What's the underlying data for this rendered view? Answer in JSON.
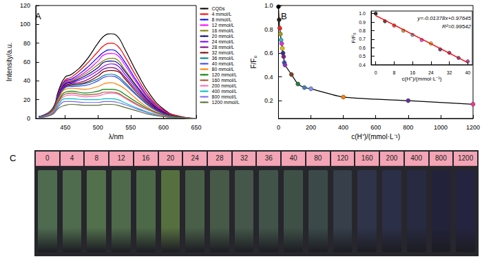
{
  "chart_data": [
    {
      "type": "line",
      "title": "A",
      "xlabel": "λ/nm",
      "ylabel": "Intensity/a.u.",
      "x": [
        410,
        430,
        440,
        450,
        460,
        480,
        500,
        510,
        520,
        530,
        540,
        560,
        580,
        600,
        620,
        650
      ],
      "xlim": [
        405,
        650
      ],
      "xticks": [
        450,
        500,
        550,
        600,
        650
      ],
      "ylim": [
        0,
        120
      ],
      "yticks": [
        0,
        20,
        40,
        60,
        80,
        100,
        120
      ],
      "legend": "right",
      "series": [
        {
          "name": "CQDs",
          "color": "#000000",
          "values": [
            2,
            10,
            30,
            44,
            47,
            60,
            80,
            88,
            90,
            87,
            75,
            48,
            25,
            10,
            3,
            0
          ]
        },
        {
          "name": "4 mmol/L",
          "color": "#ff0000",
          "values": [
            2,
            9,
            28,
            41,
            44,
            56,
            71,
            78,
            80,
            77,
            67,
            43,
            22,
            9,
            3,
            0
          ]
        },
        {
          "name": "8 mmol/L",
          "color": "#0000ff",
          "values": [
            2,
            9,
            27,
            40,
            42,
            52,
            65,
            71,
            73,
            70,
            61,
            39,
            20,
            8,
            2,
            0
          ]
        },
        {
          "name": "12 mmol/L",
          "color": "#ff00ff",
          "values": [
            2,
            9,
            26,
            39,
            41,
            49,
            61,
            68,
            69,
            67,
            58,
            37,
            19,
            8,
            2,
            0
          ]
        },
        {
          "name": "16 mmol/L",
          "color": "#808000",
          "values": [
            2,
            9,
            26,
            38,
            40,
            47,
            57,
            62,
            64,
            62,
            53,
            34,
            18,
            7,
            2,
            0
          ]
        },
        {
          "name": "20 mmol/L",
          "color": "#000080",
          "values": [
            2,
            8,
            25,
            37,
            39,
            45,
            54,
            60,
            61,
            59,
            51,
            33,
            17,
            7,
            2,
            0
          ]
        },
        {
          "name": "24 mmol/L",
          "color": "#8000ff",
          "values": [
            2,
            8,
            25,
            36,
            38,
            43,
            51,
            56,
            58,
            56,
            48,
            31,
            16,
            6,
            2,
            0
          ]
        },
        {
          "name": "28 mmol/L",
          "color": "#800080",
          "values": [
            2,
            8,
            24,
            35,
            37,
            40,
            48,
            53,
            54,
            52,
            45,
            29,
            15,
            6,
            2,
            0
          ]
        },
        {
          "name": "32 mmol/L",
          "color": "#800000",
          "values": [
            2,
            8,
            23,
            34,
            36,
            38,
            45,
            50,
            51,
            50,
            43,
            27,
            14,
            6,
            2,
            0
          ]
        },
        {
          "name": "36 mmol/L",
          "color": "#008080",
          "values": [
            2,
            8,
            23,
            33,
            35,
            37,
            42,
            46,
            47,
            45,
            39,
            25,
            13,
            5,
            2,
            0
          ]
        },
        {
          "name": "40 mmol/L",
          "color": "#4040ff",
          "values": [
            2,
            7,
            22,
            33,
            34,
            35,
            40,
            44,
            45,
            43,
            37,
            24,
            12,
            5,
            1,
            0
          ]
        },
        {
          "name": "80 mmol/L",
          "color": "#ff8000",
          "values": [
            1,
            7,
            21,
            31,
            32,
            31,
            34,
            37,
            38,
            36,
            32,
            20,
            10,
            4,
            1,
            0
          ]
        },
        {
          "name": "120 mmol/L",
          "color": "#008000",
          "values": [
            1,
            6,
            19,
            28,
            29,
            27,
            29,
            31,
            31,
            30,
            26,
            17,
            9,
            4,
            1,
            0
          ]
        },
        {
          "name": "160 mmol/L",
          "color": "#a0522d",
          "values": [
            1,
            6,
            18,
            26,
            27,
            25,
            26,
            28,
            28,
            27,
            23,
            15,
            8,
            3,
            1,
            0
          ]
        },
        {
          "name": "200 mmol/L",
          "color": "#ff69b4",
          "values": [
            1,
            6,
            17,
            24,
            25,
            23,
            24,
            26,
            27,
            26,
            22,
            14,
            8,
            3,
            1,
            0
          ]
        },
        {
          "name": "400 mmol/L",
          "color": "#00bfbf",
          "values": [
            1,
            5,
            15,
            21,
            21,
            20,
            20,
            21,
            21,
            20,
            17,
            11,
            6,
            2,
            1,
            0
          ]
        },
        {
          "name": "800 mmol/L",
          "color": "#7b68ee",
          "values": [
            1,
            5,
            13,
            18,
            18,
            17,
            17,
            18,
            18,
            17,
            15,
            10,
            5,
            2,
            1,
            0
          ]
        },
        {
          "name": "1200 mmol/L",
          "color": "#556b2f",
          "values": [
            1,
            4,
            11,
            14,
            15,
            14,
            14,
            15,
            15,
            14,
            12,
            8,
            4,
            2,
            1,
            0
          ]
        }
      ]
    },
    {
      "type": "line",
      "title": "B",
      "xlabel": "c(H⁺)/(mmol·L⁻¹)",
      "ylabel": "F/F₀",
      "x": [
        0,
        4,
        8,
        12,
        16,
        20,
        24,
        28,
        32,
        36,
        40,
        80,
        120,
        160,
        200,
        400,
        800,
        1200
      ],
      "values": [
        0.99,
        0.88,
        0.81,
        0.76,
        0.71,
        0.68,
        0.64,
        0.6,
        0.57,
        0.52,
        0.5,
        0.42,
        0.34,
        0.31,
        0.3,
        0.23,
        0.2,
        0.17
      ],
      "color": "#000000",
      "marker": "circle",
      "colors": [
        "#000000",
        "#222222",
        "#ff2020",
        "#a0a020",
        "#30c0c0",
        "#e030e0",
        "#e0c000",
        "#303090",
        "#802080",
        "#3050d0",
        "#9030c0",
        "#804020",
        "#208040",
        "#4080c0",
        "#8090ff",
        "#ff8000",
        "#6030a0",
        "#ff3090"
      ],
      "xlim": [
        0,
        1200
      ],
      "xticks": [
        0,
        200,
        400,
        600,
        800,
        1000,
        1200
      ],
      "ylim": [
        0.05,
        1.0
      ],
      "yticks": [
        0.2,
        0.4,
        0.6,
        0.8,
        {
          "value": 1.0,
          "label": "1.0"
        }
      ]
    },
    {
      "type": "scatter",
      "xlabel": "c(H⁺)/(mmol·L⁻¹)",
      "ylabel": "F/F₀",
      "x": [
        0,
        4,
        8,
        12,
        16,
        20,
        24,
        28,
        32,
        36,
        40
      ],
      "values": [
        1.0,
        0.91,
        0.86,
        0.8,
        0.75,
        0.69,
        0.65,
        0.58,
        0.54,
        0.48,
        0.44
      ],
      "marker": "circle",
      "colors": [
        "#000000",
        "#222222",
        "#ff2020",
        "#a0a020",
        "#30c0c0",
        "#e030e0",
        "#e0c000",
        "#303090",
        "#802080",
        "#3050d0",
        "#9030c0"
      ],
      "fit": {
        "type": "line",
        "color": "#ff0000",
        "x": [
          0,
          40
        ],
        "values": [
          0.976,
          0.425
        ]
      },
      "annotations": [
        "y=-0.01378x+0.97645",
        "R²=0.99542"
      ],
      "xlim": [
        -2,
        42
      ],
      "xticks": [
        0,
        8,
        16,
        24,
        32,
        40
      ],
      "ylim": [
        0.4,
        1.03
      ],
      "yticks": [
        0.4,
        0.5,
        0.6,
        0.7,
        0.8,
        0.9,
        {
          "value": 1.0,
          "label": "1.0"
        }
      ]
    },
    {
      "type": "image_strip",
      "title": "C",
      "categories": [
        "0",
        "4",
        "8",
        "12",
        "16",
        "20",
        "24",
        "28",
        "32",
        "36",
        "40",
        "80",
        "120",
        "160",
        "200",
        "400",
        "800",
        "1200"
      ],
      "colors": [
        "#4e6b50",
        "#4f6c4e",
        "#52704c",
        "#4f6a4b",
        "#4d6a48",
        "#566f3f",
        "#4a5f48",
        "#475a48",
        "#44574a",
        "#42544a",
        "#3f5147",
        "#3b4a48",
        "#363f4a",
        "#2f344a",
        "#2c2f48",
        "#272a40",
        "#22223a",
        "#252440"
      ]
    }
  ]
}
